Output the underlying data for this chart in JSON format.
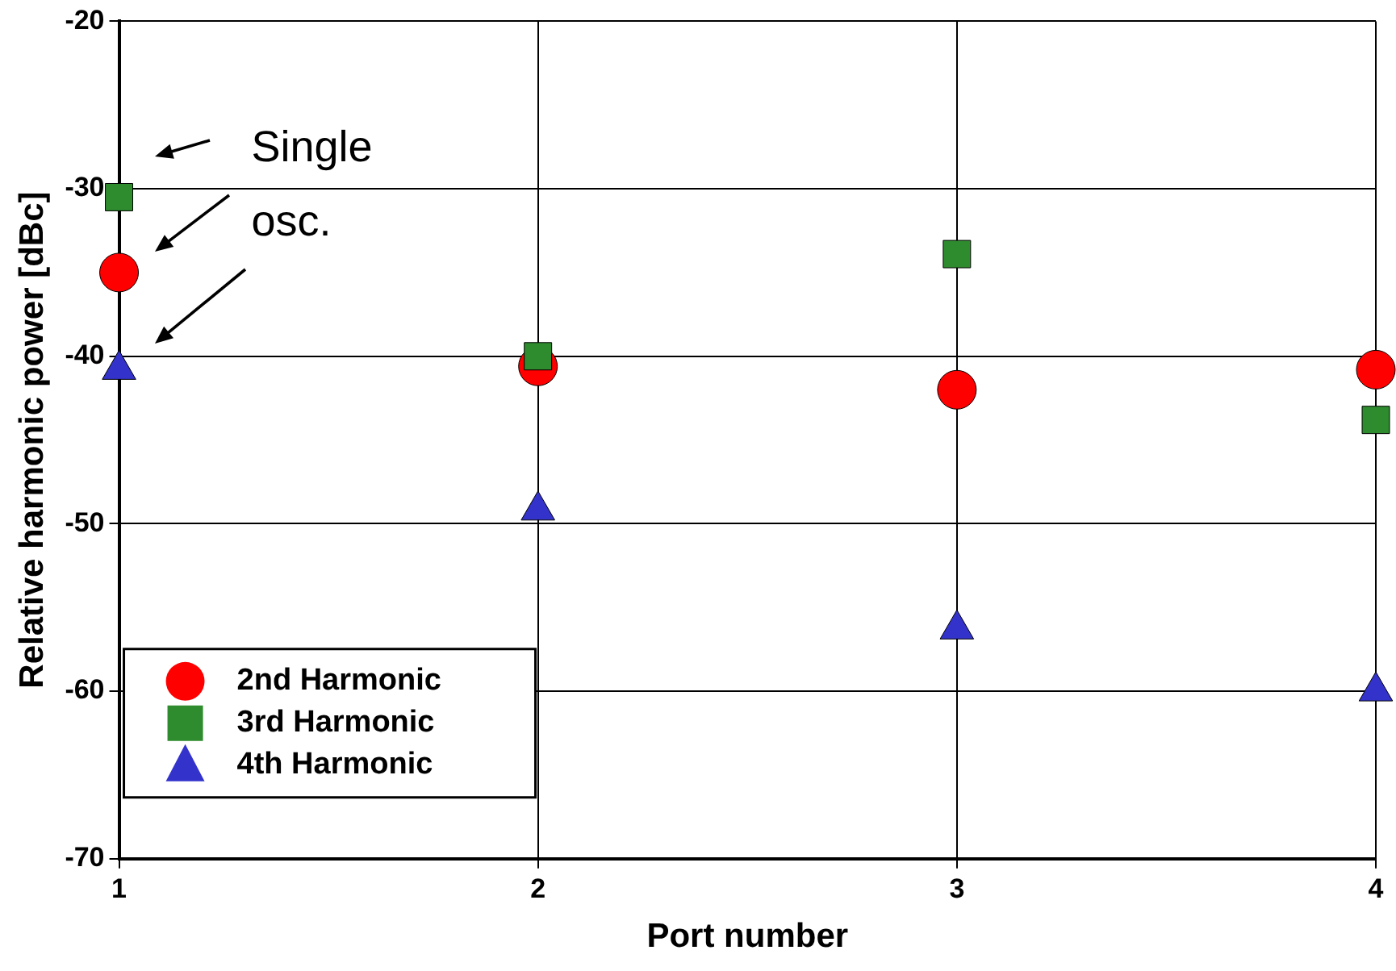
{
  "chart_data": {
    "type": "scatter",
    "xlabel": "Port number",
    "ylabel": "Relative harmonic power [dBc]",
    "x": [
      1,
      2,
      3,
      4
    ],
    "series": [
      {
        "name": "2nd Harmonic",
        "color": "#ff0000",
        "marker": "circle",
        "values": [
          -35.0,
          -40.6,
          -42.0,
          -40.8
        ]
      },
      {
        "name": "3rd Harmonic",
        "color": "#2e8b2e",
        "marker": "square",
        "values": [
          -30.5,
          -40.0,
          -33.9,
          -43.8
        ]
      },
      {
        "name": "4th Harmonic",
        "color": "#3333cc",
        "marker": "triangle",
        "values": [
          -40.8,
          -49.2,
          -56.3,
          -60.0
        ]
      }
    ],
    "xlim": [
      1,
      4
    ],
    "xticks": [
      1,
      2,
      3,
      4
    ],
    "ylim": [
      -70,
      -20
    ],
    "yticks": [
      -70,
      -60,
      -50,
      -40,
      -30,
      -20
    ],
    "grid": true,
    "legend": "bottom left",
    "annotations": [
      "Single osc."
    ]
  }
}
